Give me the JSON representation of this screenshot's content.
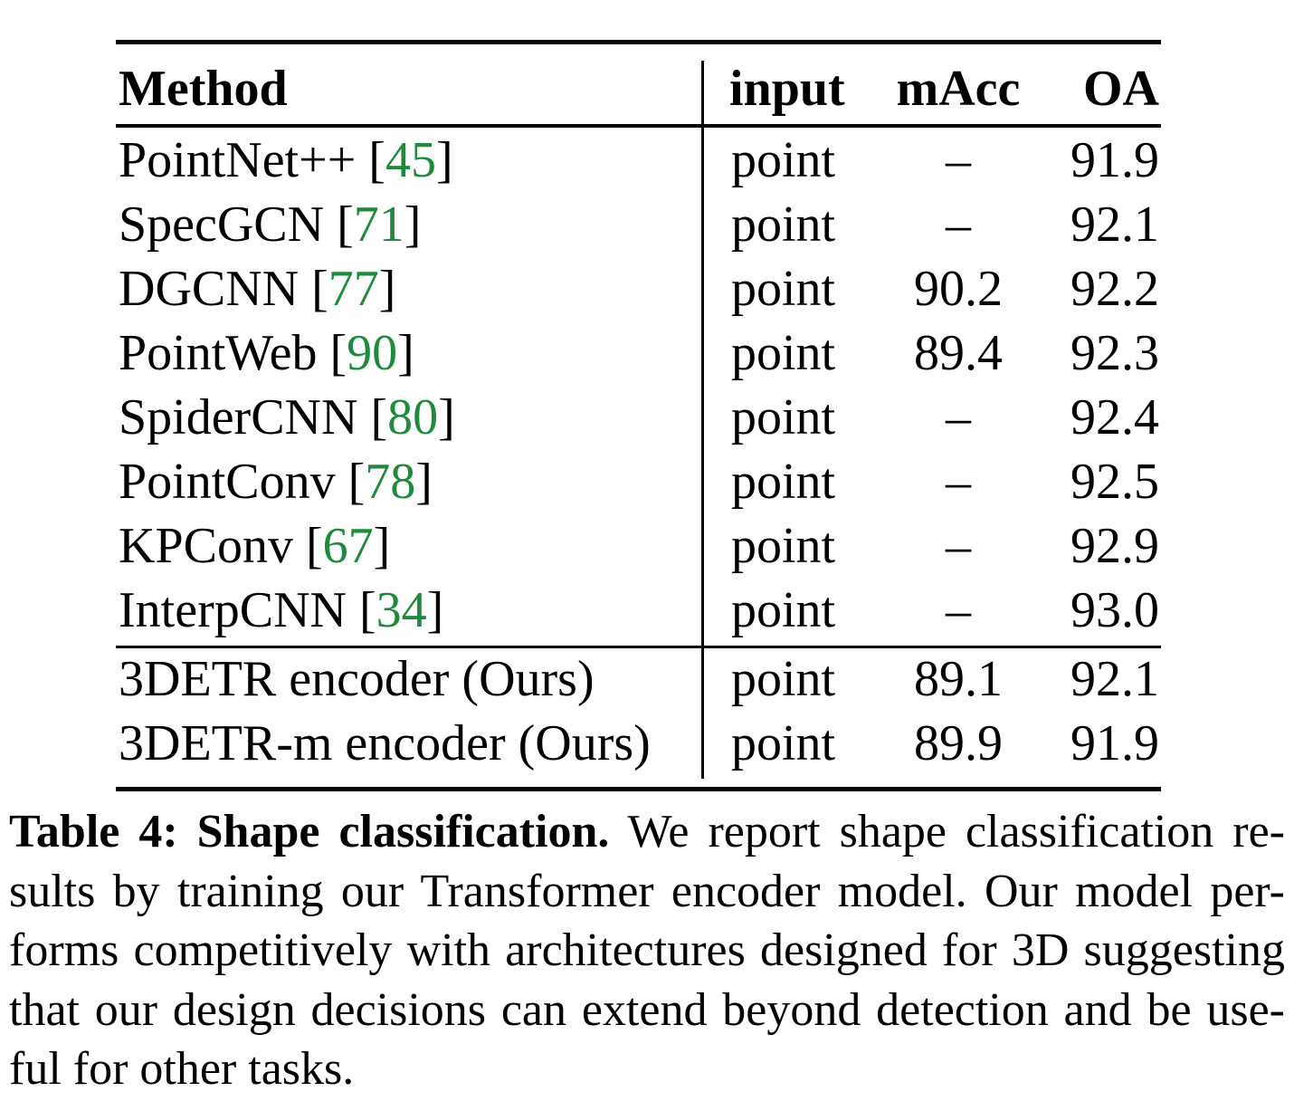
{
  "table": {
    "headers": {
      "method": "Method",
      "input": "input",
      "macc": "mAcc",
      "oa": "OA"
    },
    "rows": [
      {
        "method": "PointNet++",
        "ref": "45",
        "input": "point",
        "macc": "–",
        "oa": "91.9"
      },
      {
        "method": "SpecGCN",
        "ref": "71",
        "input": "point",
        "macc": "–",
        "oa": "92.1"
      },
      {
        "method": "DGCNN",
        "ref": "77",
        "input": "point",
        "macc": "90.2",
        "oa": "92.2"
      },
      {
        "method": "PointWeb",
        "ref": "90",
        "input": "point",
        "macc": "89.4",
        "oa": "92.3"
      },
      {
        "method": "SpiderCNN",
        "ref": "80",
        "input": "point",
        "macc": "–",
        "oa": "92.4"
      },
      {
        "method": "PointConv",
        "ref": "78",
        "input": "point",
        "macc": "–",
        "oa": "92.5"
      },
      {
        "method": "KPConv",
        "ref": "67",
        "input": "point",
        "macc": "–",
        "oa": "92.9"
      },
      {
        "method": "InterpCNN",
        "ref": "34",
        "input": "point",
        "macc": "–",
        "oa": "93.0"
      },
      {
        "method": "3DETR encoder (Ours)",
        "input": "point",
        "macc": "89.1",
        "oa": "92.1"
      },
      {
        "method": "3DETR-m encoder (Ours)",
        "input": "point",
        "macc": "89.9",
        "oa": "91.9"
      }
    ],
    "ref_color": "#1f8a3c"
  },
  "caption": {
    "label": "Table 4: Shape classification.",
    "lines": [
      "We report shape classification re-",
      "sults by training our Transformer encoder model. Our model per-",
      "forms competitively with architectures designed for 3D suggesting",
      "that our design decisions can extend beyond detection and be use-",
      "ful for other tasks."
    ]
  }
}
